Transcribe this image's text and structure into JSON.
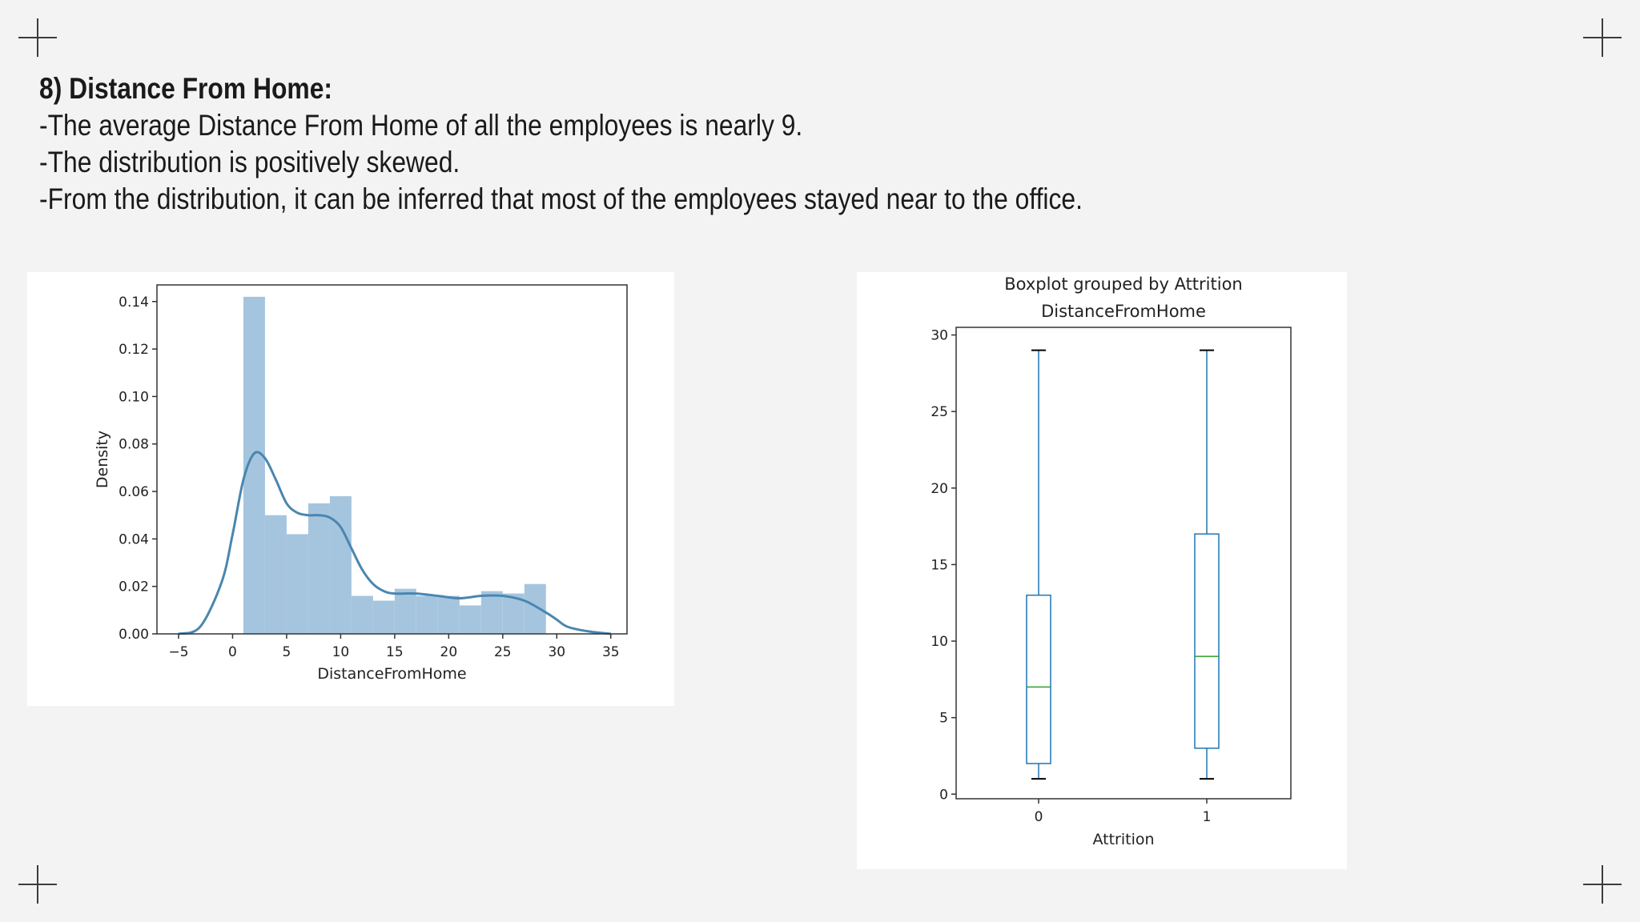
{
  "slide": {
    "heading": "8) Distance From Home:",
    "bullets": [
      "-The average Distance From Home of all the employees is nearly 9.",
      "-The distribution is positively skewed.",
      "-From the distribution, it can be inferred that most of the employees stayed near to the office."
    ]
  },
  "chart_data": [
    {
      "type": "bar",
      "subtype": "histogram with KDE line",
      "title": "",
      "xlabel": "DistanceFromHome",
      "ylabel": "Density",
      "xlim": [
        -7,
        36.5
      ],
      "ylim": [
        0,
        0.147
      ],
      "xticks": [
        -5,
        0,
        5,
        10,
        15,
        20,
        25,
        30,
        35
      ],
      "xtick_labels": [
        "−5",
        "0",
        "5",
        "10",
        "15",
        "20",
        "25",
        "30",
        "35"
      ],
      "yticks": [
        0,
        0.02,
        0.04,
        0.06,
        0.08,
        0.1,
        0.12,
        0.14
      ],
      "ytick_labels": [
        "0.00",
        "0.02",
        "0.04",
        "0.06",
        "0.08",
        "0.10",
        "0.12",
        "0.14"
      ],
      "bins": [
        {
          "x0": 1,
          "x1": 3,
          "value": 0.142
        },
        {
          "x0": 3,
          "x1": 5,
          "value": 0.05
        },
        {
          "x0": 5,
          "x1": 7,
          "value": 0.042
        },
        {
          "x0": 7,
          "x1": 9,
          "value": 0.055
        },
        {
          "x0": 9,
          "x1": 11,
          "value": 0.058
        },
        {
          "x0": 11,
          "x1": 13,
          "value": 0.016
        },
        {
          "x0": 13,
          "x1": 15,
          "value": 0.014
        },
        {
          "x0": 15,
          "x1": 17,
          "value": 0.019
        },
        {
          "x0": 17,
          "x1": 19,
          "value": 0.016
        },
        {
          "x0": 19,
          "x1": 21,
          "value": 0.016
        },
        {
          "x0": 21,
          "x1": 23,
          "value": 0.012
        },
        {
          "x0": 23,
          "x1": 25,
          "value": 0.018
        },
        {
          "x0": 25,
          "x1": 27,
          "value": 0.017
        },
        {
          "x0": 27,
          "x1": 29,
          "value": 0.021
        }
      ],
      "kde": {
        "x": [
          -5,
          -3,
          -1,
          0,
          1,
          2,
          3,
          4,
          5,
          6,
          7,
          8,
          9,
          10,
          11,
          12,
          13,
          14,
          15,
          17,
          19,
          21,
          23,
          25,
          27,
          29,
          30,
          31,
          33,
          35
        ],
        "y": [
          0.0,
          0.003,
          0.022,
          0.042,
          0.065,
          0.076,
          0.074,
          0.065,
          0.055,
          0.051,
          0.05,
          0.05,
          0.049,
          0.045,
          0.036,
          0.027,
          0.021,
          0.018,
          0.017,
          0.017,
          0.016,
          0.015,
          0.016,
          0.016,
          0.014,
          0.009,
          0.006,
          0.003,
          0.001,
          0.0
        ]
      },
      "colors": {
        "bars": "#a5c5df",
        "kde": "#4a86b0"
      },
      "grid": false
    },
    {
      "type": "boxplot",
      "title": "Boxplot grouped by Attrition",
      "subtitle": "DistanceFromHome",
      "xlabel": "Attrition",
      "ylabel": "",
      "ylim": [
        -0.3,
        30.5
      ],
      "yticks": [
        0,
        5,
        10,
        15,
        20,
        25,
        30
      ],
      "ytick_labels": [
        "0",
        "5",
        "10",
        "15",
        "20",
        "25",
        "30"
      ],
      "categories": [
        "0",
        "1"
      ],
      "boxes": [
        {
          "category": "0",
          "whisker_low": 1,
          "q1": 2,
          "median": 7,
          "q3": 13,
          "whisker_high": 29
        },
        {
          "category": "1",
          "whisker_low": 1,
          "q1": 3,
          "median": 9,
          "q3": 17,
          "whisker_high": 29
        }
      ],
      "colors": {
        "box": "#1f77b4",
        "median": "#2ca02c",
        "whisker_cap": "#000000"
      },
      "grid": false
    }
  ]
}
